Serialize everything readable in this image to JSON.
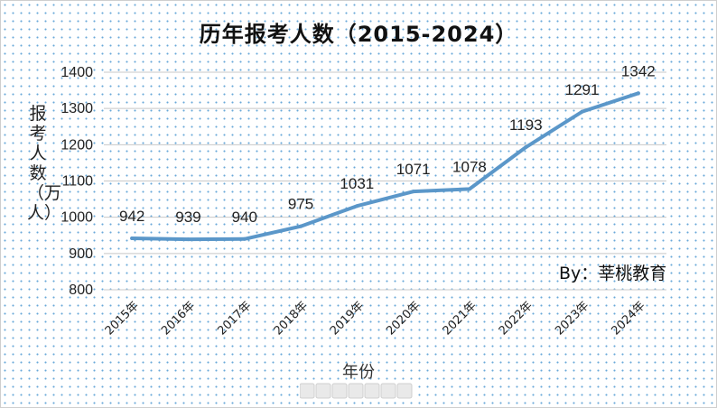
{
  "chart_data": {
    "type": "line",
    "title": "历年报考人数（2015-2024）",
    "ylabel_chars": [
      "报",
      "考",
      "人",
      "数",
      "（万",
      "人）"
    ],
    "xlabel": "年份",
    "categories": [
      "2015年",
      "2016年",
      "2017年",
      "2018年",
      "2019年",
      "2020年",
      "2021年",
      "2022年",
      "2023年",
      "2024年"
    ],
    "series": [
      {
        "values": [
          942,
          939,
          940,
          975,
          1031,
          1071,
          1078,
          1193,
          1291,
          1342
        ]
      }
    ],
    "yticks": [
      800,
      900,
      1000,
      1100,
      1200,
      1300,
      1400
    ],
    "ylim": [
      800,
      1400
    ],
    "grid": true,
    "line_color": "#5b97c9",
    "credit": "By：莘桃教育"
  }
}
